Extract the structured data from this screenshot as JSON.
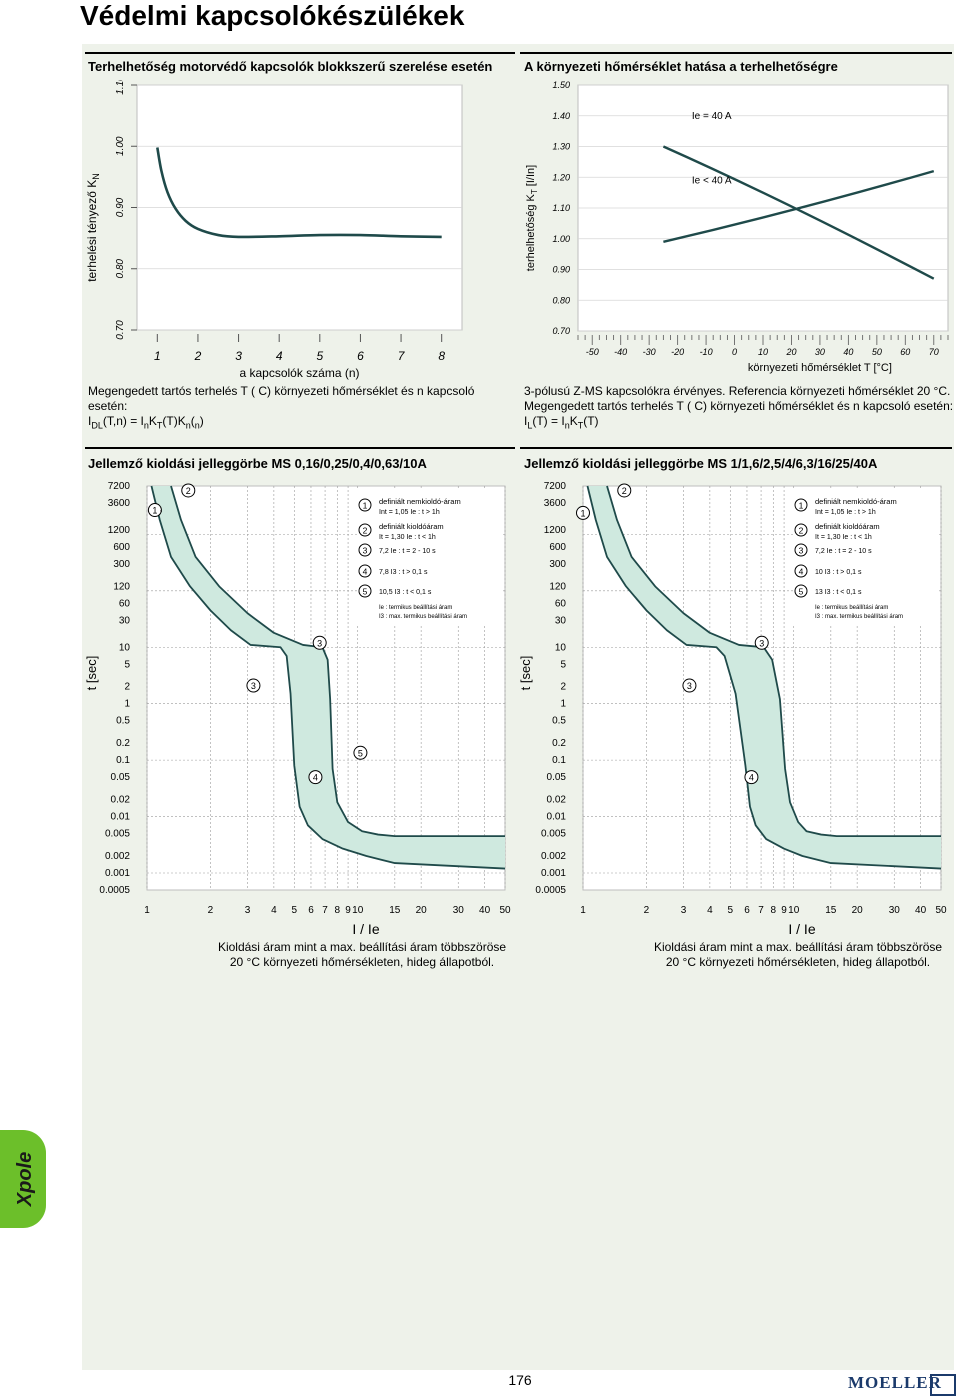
{
  "page": {
    "title": "Védelmi kapcsolókészülékek",
    "page_number": "176",
    "side_tab": "Xpole",
    "logo": "MOELLER"
  },
  "colors": {
    "curve": "#1f4a4a",
    "band": "#cfe9df",
    "panel_bg": "#eef2ea",
    "tab": "#6cbf2a",
    "logo": "#1b3a6b"
  },
  "chart_data": [
    {
      "id": "group-factor",
      "type": "line",
      "title": "Terhelhetőség motorvédő kapcsolók blokkszerű szerelése esetén",
      "xlabel": "a kapcsolók száma (n)",
      "ylabel_parts": [
        "terhelési tényező K",
        "N"
      ],
      "x_ticks": [
        "1",
        "2",
        "3",
        "4",
        "5",
        "6",
        "7",
        "8"
      ],
      "y_ticks": [
        "0.70",
        "0.80",
        "0.90",
        "1.00",
        "1.10"
      ],
      "xlim": [
        0.5,
        8.5
      ],
      "ylim": [
        0.7,
        1.1
      ],
      "series": [
        {
          "name": "K_N",
          "x": [
            1.0,
            1.1,
            1.25,
            1.45,
            1.7,
            2.0,
            2.5,
            3.0,
            4.0,
            5.0,
            6.0,
            7.0,
            8.0
          ],
          "y": [
            0.998,
            0.96,
            0.925,
            0.898,
            0.878,
            0.865,
            0.855,
            0.852,
            0.853,
            0.855,
            0.855,
            0.853,
            0.852
          ]
        }
      ]
    },
    {
      "id": "temperature",
      "type": "line",
      "title": "A környezeti hőmérséklet hatása a terhelhetőségre",
      "xlabel": "környezeti hőmérséklet T [°C]",
      "ylabel": "terhelhetőség K",
      "ylabel_sub": "T",
      "ylabel_unit": " [I/In]",
      "x_ticks": [
        -50,
        -40,
        -30,
        -20,
        -10,
        0,
        10,
        20,
        30,
        40,
        50,
        60,
        70
      ],
      "y_ticks": [
        "0.70",
        "0.80",
        "0.90",
        "1.00",
        "1.10",
        "1.20",
        "1.30",
        "1.40",
        "1.50"
      ],
      "xlim": [
        -55,
        75
      ],
      "ylim": [
        0.7,
        1.5
      ],
      "series": [
        {
          "name": "Ie = 40 A",
          "x": [
            -25,
            20,
            70
          ],
          "y": [
            1.3,
            1.11,
            0.87
          ]
        },
        {
          "name": "Ie < 40 A",
          "x": [
            -25,
            20,
            70
          ],
          "y": [
            0.99,
            1.11,
            1.22
          ]
        }
      ]
    },
    {
      "id": "trip-1",
      "type": "area",
      "title": "Jellemző kioldási jelleggörbe MS 0,16/0,25/0,4/0,63/10A",
      "xlabel": "I / Ie",
      "ylabel": "t [sec]",
      "caption_line1": "Kioldási áram mint a max. beállítási áram többszöröse",
      "caption_line2": "20 °C környezeti hőmérsékleten, hideg állapotból.",
      "x_ticks": [
        1,
        2,
        3,
        4,
        5,
        6,
        7,
        8,
        9,
        10,
        15,
        20,
        30,
        40,
        50
      ],
      "y_ticks": [
        "7200",
        "3600",
        "1200",
        "600",
        "300",
        "120",
        "60",
        "30",
        "10",
        "5",
        "2",
        "1",
        "0.5",
        "0.2",
        "0.1",
        "0.05",
        "0.02",
        "0.01",
        "0.005",
        "0.002",
        "0.001",
        "0.0005"
      ],
      "xlim": [
        1,
        50
      ],
      "ylim": [
        0.0005,
        7200
      ],
      "band_lower_x": [
        1.05,
        1.15,
        1.3,
        1.6,
        2.0,
        2.5,
        3.1,
        4.3,
        4.6,
        4.8,
        5.0,
        5.3,
        5.8,
        6.8,
        8.5,
        11.0,
        15.0,
        50.0
      ],
      "band_lower_y": [
        7200,
        1800,
        400,
        120,
        45,
        20,
        11,
        10,
        7,
        1.5,
        0.08,
        0.015,
        0.007,
        0.004,
        0.0027,
        0.002,
        0.0015,
        0.0012
      ],
      "band_upper_x": [
        1.3,
        1.45,
        1.7,
        2.2,
        3.0,
        4.0,
        5.5,
        6.8,
        7.2,
        7.4,
        7.6,
        8.0,
        9.0,
        10.5,
        12.5,
        15.0,
        50.0
      ],
      "band_upper_y": [
        7200,
        1800,
        400,
        120,
        40,
        18,
        11,
        10,
        6,
        1.2,
        0.07,
        0.018,
        0.008,
        0.0055,
        0.0048,
        0.0045,
        0.0045
      ],
      "markers": [
        {
          "id": "1",
          "x": 1.09,
          "y": 2700,
          "leader_to_x": 1.17,
          "leader_to_y": 2500
        },
        {
          "id": "2",
          "x": 1.57,
          "y": 6000
        },
        {
          "id": "3",
          "x": 6.6,
          "y": 12
        },
        {
          "id": "3",
          "x": 3.2,
          "y": 2.1
        },
        {
          "id": "4",
          "x": 6.3,
          "y": 0.05
        },
        {
          "id": "5",
          "x": 10.3,
          "y": 0.135
        }
      ],
      "legend": [
        {
          "n": "1",
          "title": "definiált nemkioldó-áram",
          "detail": "Int = 1,05 Ie : t > 1h"
        },
        {
          "n": "2",
          "title": "definiált kioldóáram",
          "detail": "It = 1,30 Ie : t < 1h"
        },
        {
          "n": "3",
          "title": "",
          "detail": "7,2 Ie : t = 2 - 10 s"
        },
        {
          "n": "4",
          "title": "",
          "detail": "7,8 I3 : t > 0,1 s"
        },
        {
          "n": "5",
          "title": "",
          "detail": "10,5 I3 : t < 0,1 s"
        }
      ],
      "legend_notes": [
        "Ie : termikus beállítási áram",
        "I3 : max. termikus beállítási áram"
      ]
    },
    {
      "id": "trip-2",
      "type": "area",
      "title": "Jellemző kioldási jelleggörbe MS 1/1,6/2,5/4/6,3/16/25/40A",
      "xlabel": "I / Ie",
      "ylabel": "t [sec]",
      "caption_line1": "Kioldási áram mint a max. beállítási áram többszöröse",
      "caption_line2": "20 °C környezeti hőmérsékleten, hideg állapotból.",
      "x_ticks": [
        1,
        2,
        3,
        4,
        5,
        6,
        7,
        8,
        9,
        10,
        15,
        20,
        30,
        40,
        50
      ],
      "y_ticks": [
        "7200",
        "3600",
        "1200",
        "600",
        "300",
        "120",
        "60",
        "30",
        "10",
        "5",
        "2",
        "1",
        "0.5",
        "0.2",
        "0.1",
        "0.05",
        "0.02",
        "0.01",
        "0.005",
        "0.002",
        "0.001",
        "0.0005"
      ],
      "xlim": [
        1,
        50
      ],
      "ylim": [
        0.0005,
        7200
      ],
      "band_lower_x": [
        1.05,
        1.15,
        1.3,
        1.6,
        2.0,
        2.5,
        3.1,
        4.3,
        4.7,
        5.3,
        5.9,
        6.2,
        6.6,
        7.4,
        9.0,
        11.0,
        15.0,
        50.0
      ],
      "band_lower_y": [
        7200,
        1800,
        400,
        120,
        45,
        20,
        11,
        10,
        7,
        1.5,
        0.08,
        0.015,
        0.007,
        0.004,
        0.0027,
        0.002,
        0.0015,
        0.0012
      ],
      "band_upper_x": [
        1.3,
        1.45,
        1.7,
        2.2,
        3.0,
        4.0,
        5.5,
        7.2,
        7.9,
        8.6,
        9.1,
        9.6,
        10.5,
        11.5,
        13.5,
        16.0,
        50.0
      ],
      "band_upper_y": [
        7200,
        1800,
        400,
        120,
        40,
        18,
        11,
        10,
        6,
        1.2,
        0.07,
        0.018,
        0.008,
        0.0055,
        0.0048,
        0.0045,
        0.0045
      ],
      "markers": [
        {
          "id": "1",
          "x": 1.0,
          "y": 2400
        },
        {
          "id": "2",
          "x": 1.57,
          "y": 6000
        },
        {
          "id": "3",
          "x": 7.05,
          "y": 12
        },
        {
          "id": "3",
          "x": 3.2,
          "y": 2.1
        },
        {
          "id": "4",
          "x": 6.3,
          "y": 0.05
        }
      ],
      "legend": [
        {
          "n": "1",
          "title": "definiált nemkioldó-áram",
          "detail": "Int = 1,05 Ie : t > 1h"
        },
        {
          "n": "2",
          "title": "definiált kioldóáram",
          "detail": "It = 1,30 Ie : t < 1h"
        },
        {
          "n": "3",
          "title": "",
          "detail": "7,2 Ie : t = 2 - 10 s"
        },
        {
          "n": "4",
          "title": "",
          "detail": "10 I3 : t > 0,1 s"
        },
        {
          "n": "5",
          "title": "",
          "detail": "13 I3 : t < 0,1 s"
        }
      ],
      "legend_notes": [
        "Ie : termikus beállítási áram",
        "I3 : max. termikus beállítási áram"
      ]
    }
  ],
  "notes": {
    "left_line1": "Megengedett tartós terhelés T ( C) környezeti hőmérséklet és n kapcsoló esetén:",
    "left_formula": "I_DL(T,n) = I_n K_T(T) K_n(n)",
    "right_line1": "3-pólusú Z-MS kapcsolókra érvényes. Referencia környezeti hőmérséklet 20 °C.",
    "right_line2": "Megengedett tartós terhelés T ( C) környezeti hőmérséklet és n kapcsoló esetén:",
    "right_formula": "I_L(T) = I_n K_T(T)"
  }
}
